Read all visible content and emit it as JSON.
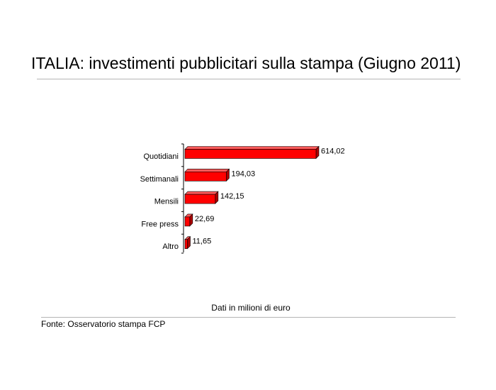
{
  "header": {
    "title": "ITALIA: investimenti pubblicitari sulla stampa (Giugno 2011)"
  },
  "footer": {
    "unit_note": "Dati in milioni di euro",
    "source": "Fonte: Osservatorio stampa FCP"
  },
  "colors": {
    "bar_front": "#ff0000",
    "bar_top": "#ff5a5a",
    "bar_side": "#b00000"
  },
  "chart_data": {
    "type": "bar",
    "orientation": "horizontal",
    "categories": [
      "Quotidiani",
      "Settimanali",
      "Mensili",
      "Free press",
      "Altro"
    ],
    "values": [
      614.02,
      194.03,
      142.15,
      22.69,
      11.65
    ],
    "value_labels": [
      "614,02",
      "194,03",
      "142,15",
      "22,69",
      "11,65"
    ],
    "title": "ITALIA: investimenti pubblicitari sulla stampa (Giugno 2011)",
    "xlabel": "Dati in milioni di euro",
    "ylabel": "",
    "xlim": [
      0,
      614.02
    ],
    "grid": false,
    "legend": "none",
    "style": "3d"
  }
}
